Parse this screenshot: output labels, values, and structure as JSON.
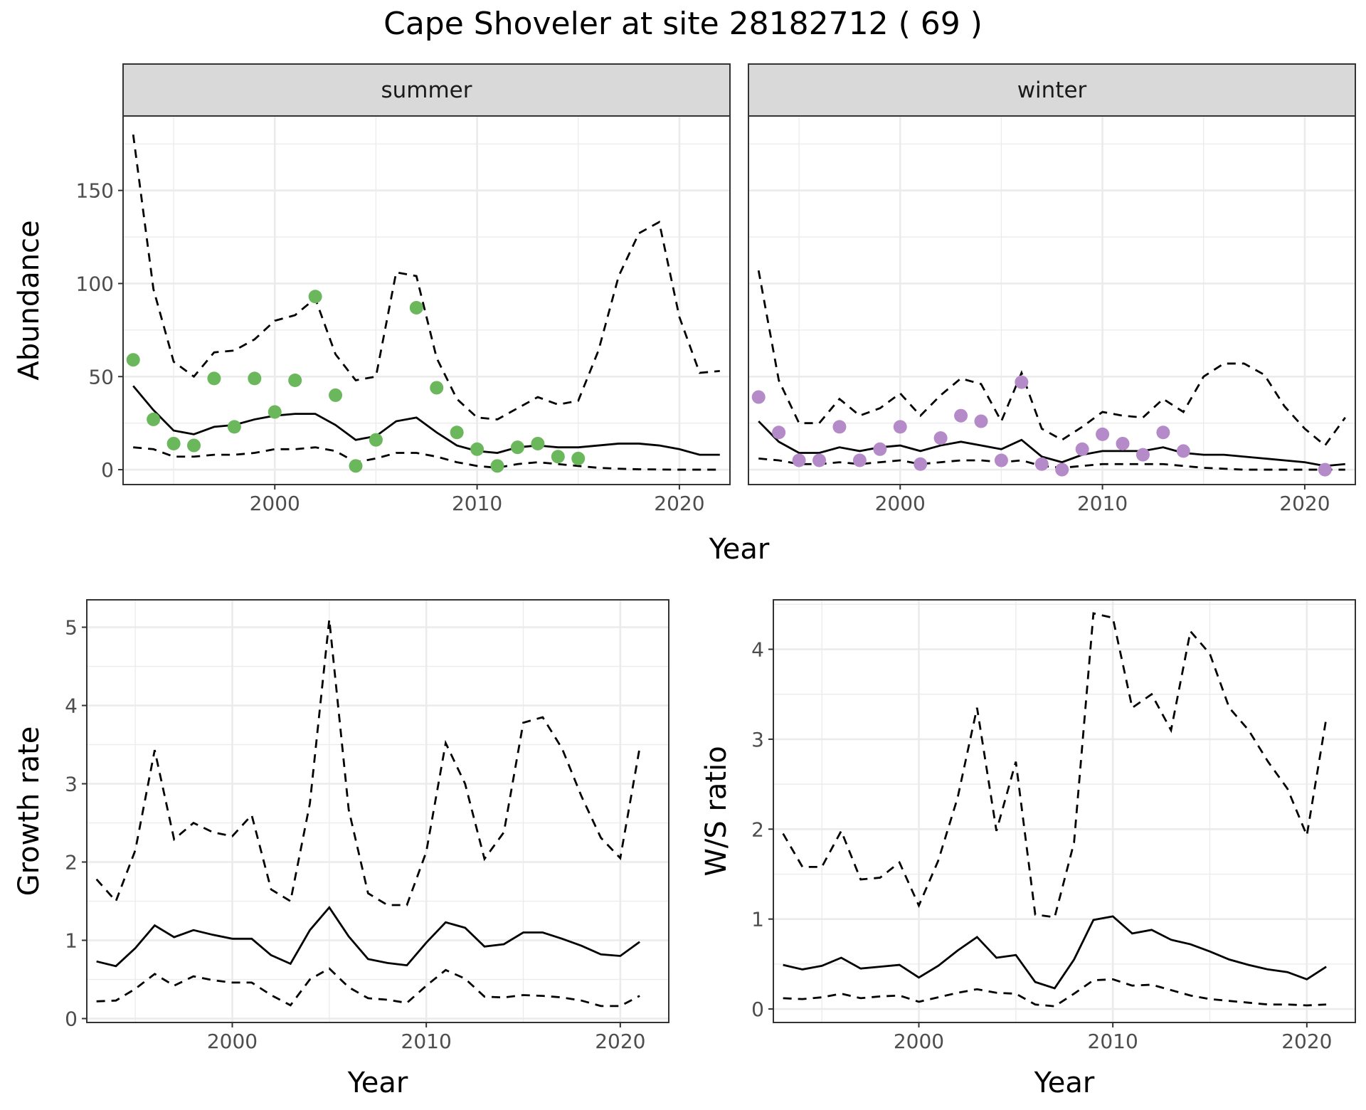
{
  "chart_data": {
    "type": "line",
    "title": "Cape Shoveler at site 28182712 ( 69 )",
    "panels": [
      {
        "id": "abundance",
        "facets": [
          "summer",
          "winter"
        ],
        "xlabel": "Year",
        "ylabel": "Abundance",
        "xlim": [
          1992.5,
          2022.5
        ],
        "ylim": [
          -8,
          190
        ],
        "xticks": [
          2000,
          2010,
          2020
        ],
        "yticks": [
          0,
          50,
          100,
          150
        ],
        "point_colors": {
          "summer": "#6ab75c",
          "winter": "#b48ac8"
        },
        "series": {
          "summer": {
            "x": [
              1993,
              1994,
              1995,
              1996,
              1997,
              1998,
              1999,
              2000,
              2001,
              2002,
              2003,
              2004,
              2005,
              2006,
              2007,
              2008,
              2009,
              2010,
              2011,
              2012,
              2013,
              2014,
              2015,
              2016,
              2017,
              2018,
              2019,
              2020,
              2021,
              2022
            ],
            "estimate": [
              45,
              32,
              21,
              19,
              23,
              24,
              27,
              29,
              30,
              30,
              24,
              16,
              18,
              26,
              28,
              20,
              13,
              10,
              9,
              12,
              13,
              12,
              12,
              13,
              14,
              14,
              13,
              11,
              8,
              8
            ],
            "upper": [
              180,
              97,
              58,
              50,
              63,
              64,
              70,
              80,
              83,
              92,
              62,
              48,
              50,
              106,
              104,
              60,
              38,
              28,
              27,
              33,
              39,
              35,
              37,
              64,
              104,
              127,
              133,
              82,
              52,
              53
            ],
            "lower": [
              12,
              11,
              7,
              7,
              8,
              8,
              9,
              11,
              11,
              12,
              10,
              4,
              6,
              9,
              9,
              7,
              4,
              2,
              1,
              3,
              4,
              3,
              2,
              1,
              0.5,
              0.2,
              0.1,
              0,
              0,
              0
            ],
            "observed_x": [
              1993,
              1994,
              1995,
              1996,
              1997,
              1998,
              1999,
              2000,
              2001,
              2002,
              2003,
              2004,
              2005,
              2007,
              2008,
              2009,
              2010,
              2011,
              2012,
              2013,
              2014,
              2015
            ],
            "observed": [
              59,
              27,
              14,
              13,
              49,
              23,
              49,
              31,
              48,
              93,
              40,
              2,
              16,
              87,
              44,
              20,
              11,
              2,
              12,
              14,
              7,
              6
            ]
          },
          "winter": {
            "x": [
              1993,
              1994,
              1995,
              1996,
              1997,
              1998,
              1999,
              2000,
              2001,
              2002,
              2003,
              2004,
              2005,
              2006,
              2007,
              2008,
              2009,
              2010,
              2011,
              2012,
              2013,
              2014,
              2015,
              2016,
              2017,
              2018,
              2019,
              2020,
              2021,
              2022
            ],
            "estimate": [
              26,
              15,
              9,
              9,
              12,
              10,
              12,
              13,
              10,
              13,
              15,
              13,
              11,
              16,
              7,
              4,
              8,
              10,
              10,
              10,
              12,
              9,
              8,
              8,
              7,
              6,
              5,
              4,
              2,
              3
            ],
            "upper": [
              107,
              48,
              25,
              25,
              38,
              29,
              33,
              41,
              29,
              40,
              49,
              46,
              26,
              52,
              22,
              16,
              23,
              31,
              29,
              28,
              38,
              31,
              50,
              57,
              57,
              51,
              34,
              22,
              13,
              28
            ],
            "lower": [
              6,
              5,
              3,
              3,
              4,
              3,
              4,
              5,
              3,
              4,
              5,
              5,
              4,
              5,
              2,
              1,
              2,
              3,
              3,
              3,
              3,
              2,
              1,
              0.5,
              0,
              0,
              0,
              0,
              0,
              0
            ],
            "observed_x": [
              1993,
              1994,
              1995,
              1996,
              1997,
              1998,
              1999,
              2000,
              2001,
              2002,
              2003,
              2004,
              2005,
              2006,
              2007,
              2008,
              2009,
              2010,
              2011,
              2012,
              2013,
              2014,
              2021
            ],
            "observed": [
              39,
              20,
              5,
              5,
              23,
              5,
              11,
              23,
              3,
              17,
              29,
              26,
              5,
              47,
              3,
              0,
              11,
              19,
              14,
              8,
              20,
              10,
              0
            ]
          }
        }
      },
      {
        "id": "growth",
        "xlabel": "Year",
        "ylabel": "Growth rate",
        "xlim": [
          1992.5,
          2022.5
        ],
        "ylim": [
          -0.05,
          5.35
        ],
        "xticks": [
          2000,
          2010,
          2020
        ],
        "yticks": [
          0,
          1,
          2,
          3,
          4,
          5
        ],
        "x": [
          1993,
          1994,
          1995,
          1996,
          1997,
          1998,
          1999,
          2000,
          2001,
          2002,
          2003,
          2004,
          2005,
          2006,
          2007,
          2008,
          2009,
          2010,
          2011,
          2012,
          2013,
          2014,
          2015,
          2016,
          2017,
          2018,
          2019,
          2020,
          2021
        ],
        "estimate": [
          0.73,
          0.67,
          0.9,
          1.19,
          1.04,
          1.13,
          1.07,
          1.02,
          1.02,
          0.81,
          0.7,
          1.13,
          1.42,
          1.05,
          0.76,
          0.71,
          0.68,
          0.97,
          1.23,
          1.16,
          0.92,
          0.95,
          1.1,
          1.1,
          1.02,
          0.93,
          0.82,
          0.8,
          0.98
        ],
        "upper": [
          1.78,
          1.5,
          2.15,
          3.43,
          2.29,
          2.5,
          2.38,
          2.33,
          2.6,
          1.65,
          1.5,
          2.75,
          5.1,
          2.67,
          1.6,
          1.45,
          1.45,
          2.13,
          3.52,
          3.0,
          2.04,
          2.38,
          3.78,
          3.85,
          3.45,
          2.84,
          2.31,
          2.05,
          3.46
        ],
        "lower": [
          0.22,
          0.23,
          0.38,
          0.57,
          0.42,
          0.54,
          0.49,
          0.46,
          0.46,
          0.3,
          0.17,
          0.5,
          0.64,
          0.4,
          0.26,
          0.24,
          0.2,
          0.42,
          0.62,
          0.51,
          0.28,
          0.27,
          0.3,
          0.29,
          0.27,
          0.23,
          0.16,
          0.16,
          0.29
        ]
      },
      {
        "id": "ws_ratio",
        "xlabel": "Year",
        "ylabel": "W/S ratio",
        "xlim": [
          1992.5,
          2022.5
        ],
        "ylim": [
          -0.15,
          4.55
        ],
        "xticks": [
          2000,
          2010,
          2020
        ],
        "yticks": [
          0,
          1,
          2,
          3,
          4
        ],
        "x": [
          1993,
          1994,
          1995,
          1996,
          1997,
          1998,
          1999,
          2000,
          2001,
          2002,
          2003,
          2004,
          2005,
          2006,
          2007,
          2008,
          2009,
          2010,
          2011,
          2012,
          2013,
          2014,
          2015,
          2016,
          2017,
          2018,
          2019,
          2020,
          2021
        ],
        "estimate": [
          0.49,
          0.44,
          0.48,
          0.57,
          0.45,
          0.47,
          0.49,
          0.35,
          0.48,
          0.65,
          0.8,
          0.57,
          0.6,
          0.3,
          0.23,
          0.55,
          0.99,
          1.03,
          0.84,
          0.88,
          0.77,
          0.72,
          0.64,
          0.55,
          0.49,
          0.44,
          0.41,
          0.33,
          0.47
        ],
        "upper": [
          1.95,
          1.58,
          1.58,
          1.98,
          1.44,
          1.46,
          1.63,
          1.15,
          1.65,
          2.35,
          3.35,
          1.98,
          2.75,
          1.05,
          1.02,
          1.85,
          4.4,
          4.35,
          3.35,
          3.5,
          3.1,
          4.2,
          3.95,
          3.35,
          3.1,
          2.75,
          2.45,
          1.93,
          3.23
        ],
        "lower": [
          0.12,
          0.11,
          0.13,
          0.17,
          0.12,
          0.14,
          0.15,
          0.08,
          0.13,
          0.18,
          0.22,
          0.18,
          0.17,
          0.05,
          0.03,
          0.17,
          0.32,
          0.33,
          0.26,
          0.27,
          0.21,
          0.15,
          0.11,
          0.09,
          0.07,
          0.05,
          0.05,
          0.04,
          0.05
        ]
      }
    ]
  }
}
